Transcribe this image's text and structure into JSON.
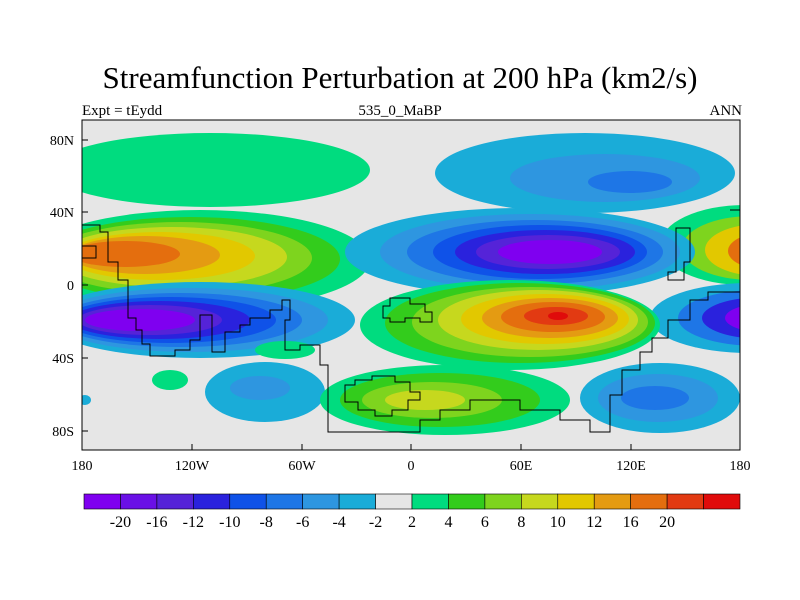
{
  "header": {
    "title": "Streamfunction Perturbation at 200 hPa (km2/s)",
    "left_label": "Expt = tEydd",
    "center_label": "535_0_MaBP",
    "right_label": "ANN"
  },
  "axes": {
    "lat_ticks": [
      {
        "value": 80,
        "label": "80N"
      },
      {
        "value": 40,
        "label": "40N"
      },
      {
        "value": 0,
        "label": "0"
      },
      {
        "value": -40,
        "label": "40S"
      },
      {
        "value": -80,
        "label": "80S"
      }
    ],
    "lon_ticks": [
      {
        "value": -180,
        "label": "180"
      },
      {
        "value": -120,
        "label": "120W"
      },
      {
        "value": -60,
        "label": "60W"
      },
      {
        "value": 0,
        "label": "0"
      },
      {
        "value": 60,
        "label": "60E"
      },
      {
        "value": 120,
        "label": "120E"
      },
      {
        "value": 180,
        "label": "180"
      }
    ],
    "lon_range": [
      -180,
      180
    ],
    "lat_range": [
      -90,
      90
    ]
  },
  "colorbar": {
    "colors": [
      "#7f00f0",
      "#6a10e6",
      "#5523d8",
      "#2a22dd",
      "#0f52e8",
      "#1e76e6",
      "#2e96e0",
      "#1aacd8",
      "#e6e6e6",
      "#00dc7f",
      "#33cc1c",
      "#7ed41e",
      "#c6d81e",
      "#e2c800",
      "#e49b12",
      "#e46e0e",
      "#e23a12",
      "#e00b0b"
    ],
    "labels": [
      "-20",
      "-16",
      "-12",
      "-10",
      "-8",
      "-6",
      "-4",
      "-2",
      "2",
      "4",
      "6",
      "8",
      "10",
      "12",
      "16",
      "20"
    ]
  },
  "chart_data": {
    "type": "heatmap",
    "title": "Streamfunction Perturbation at 200 hPa (km2/s)",
    "units": "km2/s",
    "level": "200 hPa",
    "experiment": "tEydd",
    "period": "ANN",
    "case": "535_0_MaBP",
    "features": [
      {
        "name": "subtropical high north pacific",
        "lon": -130,
        "lat": 18,
        "value": 14
      },
      {
        "name": "low south pacific",
        "lon": -140,
        "lat": -18,
        "value": -20
      },
      {
        "name": "low north asia",
        "lon": 75,
        "lat": 18,
        "value": -20
      },
      {
        "name": "high indian ocean",
        "lon": 78,
        "lat": -17,
        "value": 20
      },
      {
        "name": "high north polar pacific",
        "lon": -110,
        "lat": 68,
        "value": 4
      },
      {
        "name": "low north atlantic polar",
        "lon": 80,
        "lat": 62,
        "value": -6
      },
      {
        "name": "high south atlantic",
        "lon": 10,
        "lat": -62,
        "value": 6
      },
      {
        "name": "low southwest pacific",
        "lon": 150,
        "lat": -65,
        "value": -6
      }
    ]
  }
}
